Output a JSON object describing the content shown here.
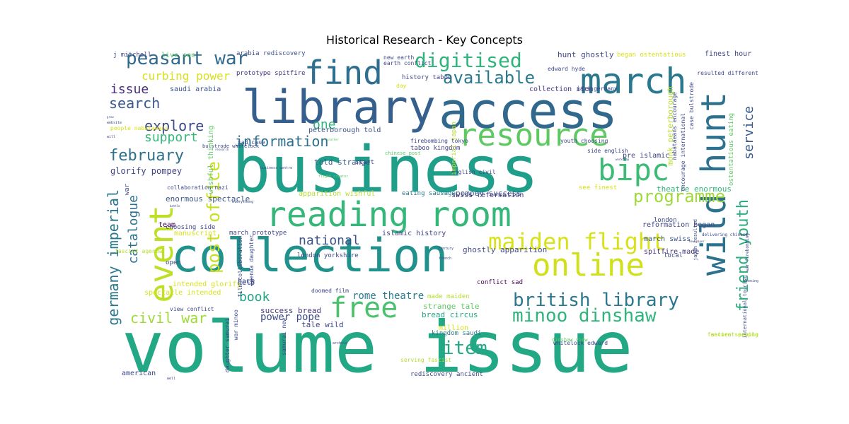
{
  "chart_data": {
    "type": "wordcloud",
    "title": "Historical Research - Key Concepts",
    "colormap": "viridis",
    "background": "#ffffff",
    "words": [
      {
        "text": "volume issue",
        "color": "#22a884"
      },
      {
        "text": "business",
        "color": "#1f9e89"
      },
      {
        "text": "access",
        "color": "#31688e"
      },
      {
        "text": "library",
        "color": "#355f8d"
      },
      {
        "text": "collection",
        "color": "#21918c"
      },
      {
        "text": "reading room",
        "color": "#35b779"
      },
      {
        "text": "march",
        "color": "#2a788e"
      },
      {
        "text": "wild hunt",
        "color": "#2c728e"
      },
      {
        "text": "online",
        "color": "#d0e11c"
      },
      {
        "text": "find",
        "color": "#2e6e8e"
      },
      {
        "text": "resource",
        "color": "#5ec962"
      },
      {
        "text": "event",
        "color": "#bddf26"
      },
      {
        "text": "bipc",
        "color": "#3cbb75"
      },
      {
        "text": "free",
        "color": "#4ac16d"
      },
      {
        "text": "maiden flight",
        "color": "#d8e219"
      },
      {
        "text": "digitised",
        "color": "#2fb47c"
      },
      {
        "text": "peasant war",
        "color": "#30698e"
      },
      {
        "text": "british library",
        "color": "#2a788e"
      },
      {
        "text": "minoo dinshaw",
        "color": "#2fb47c"
      },
      {
        "text": "post office",
        "color": "#c8e020"
      },
      {
        "text": "programme",
        "color": "#9fda3a"
      },
      {
        "text": "item",
        "color": "#22a884"
      },
      {
        "text": "friend youth",
        "color": "#29af7f"
      },
      {
        "text": "germany imperial",
        "color": "#2a788e"
      },
      {
        "text": "available",
        "color": "#2a788e"
      },
      {
        "text": "information",
        "color": "#2d708e"
      },
      {
        "text": "february",
        "color": "#2d708e"
      },
      {
        "text": "explore",
        "color": "#3e4989"
      },
      {
        "text": "search",
        "color": "#38598c"
      },
      {
        "text": "issue",
        "color": "#472d7b"
      },
      {
        "text": "national",
        "color": "#3b528b"
      },
      {
        "text": "civil war",
        "color": "#a0da39"
      },
      {
        "text": "book",
        "color": "#21a685"
      },
      {
        "text": "catalogue",
        "color": "#2c728e"
      },
      {
        "text": "service",
        "color": "#38598c"
      },
      {
        "text": "support",
        "color": "#35b779"
      },
      {
        "text": "one",
        "color": "#2fb47c"
      },
      {
        "text": "curbing power",
        "color": "#d8e219"
      },
      {
        "text": "rome theatre",
        "color": "#287c8e"
      },
      {
        "text": "power pope",
        "color": "#3e4989"
      },
      {
        "text": "glorify pompey",
        "color": "#404588"
      },
      {
        "text": "told strange",
        "color": "#355f8d"
      },
      {
        "text": "enormous spectacle",
        "color": "#39568c"
      },
      {
        "text": "theatre enormous",
        "color": "#2fb47c"
      },
      {
        "text": "pompey success",
        "color": "#38598c"
      },
      {
        "text": "success bread",
        "color": "#453882"
      },
      {
        "text": "bread circus",
        "color": "#22a884"
      },
      {
        "text": "strange tale",
        "color": "#5ec962"
      },
      {
        "text": "tale wild",
        "color": "#404588"
      },
      {
        "text": "hunt ghostly",
        "color": "#3e4989"
      },
      {
        "text": "ghostly apparition",
        "color": "#3e4989"
      },
      {
        "text": "collection item",
        "color": "#453882"
      },
      {
        "text": "peterborough told",
        "color": "#3b528b"
      },
      {
        "text": "monk peterborough",
        "color": "#b5de2b"
      },
      {
        "text": "march swiss",
        "color": "#38598c"
      },
      {
        "text": "swiss reformation",
        "color": "#46327e"
      },
      {
        "text": "reformation began",
        "color": "#404588"
      },
      {
        "text": "spitfire made",
        "color": "#46327e"
      },
      {
        "text": "made maiden",
        "color": "#b5de2b"
      },
      {
        "text": "prototype spitfire",
        "color": "#46327e"
      },
      {
        "text": "march prototype",
        "color": "#3e4989"
      },
      {
        "text": "saudi arabia",
        "color": "#3b528b"
      },
      {
        "text": "kingdom saudi",
        "color": "#2a788e"
      },
      {
        "text": "taboo kingdom",
        "color": "#404588"
      },
      {
        "text": "history taboo",
        "color": "#404588"
      },
      {
        "text": "islamic history",
        "color": "#404588"
      },
      {
        "text": "pre islamic",
        "color": "#404588"
      },
      {
        "text": "arabia rediscovery",
        "color": "#3b528b"
      },
      {
        "text": "rediscovery ancient",
        "color": "#3e4989"
      },
      {
        "text": "ancient people",
        "color": "#b5de2b"
      },
      {
        "text": "people nabataeans",
        "color": "#d8e219"
      },
      {
        "text": "nabataeans encourage",
        "color": "#3e4989"
      },
      {
        "text": "encourage international",
        "color": "#3e4989"
      },
      {
        "text": "international tourism",
        "color": "#3e4989"
      },
      {
        "text": "finest hour",
        "color": "#3e4989"
      },
      {
        "text": "see finest",
        "color": "#d8e219"
      },
      {
        "text": "began ostentatious",
        "color": "#d8e219"
      },
      {
        "text": "ostentatious eating",
        "color": "#5ec962"
      },
      {
        "text": "eating sausage",
        "color": "#2a788e"
      },
      {
        "text": "fascist agenda",
        "color": "#b5de2b"
      },
      {
        "text": "serving fascist",
        "color": "#b5de2b"
      },
      {
        "text": "feature serving",
        "color": "#b5de2b"
      },
      {
        "text": "agenda daughter",
        "color": "#3e4989"
      },
      {
        "text": "daughter samurai",
        "color": "#3e4989"
      },
      {
        "text": "samurai new",
        "color": "#3e4989"
      },
      {
        "text": "new earth",
        "color": "#3e4989"
      },
      {
        "text": "earth conflict",
        "color": "#3e4989"
      },
      {
        "text": "view conflict",
        "color": "#3e4989"
      },
      {
        "text": "conflict sad",
        "color": "#440154"
      },
      {
        "text": "sad case",
        "color": "#3e4989"
      },
      {
        "text": "case bulstrode",
        "color": "#3e4989"
      },
      {
        "text": "bulstrode whitelock",
        "color": "#3e4989"
      },
      {
        "text": "whitelock edward",
        "color": "#3e4989"
      },
      {
        "text": "edward hyde",
        "color": "#3e4989"
      },
      {
        "text": "youth choosing",
        "color": "#3e4989"
      },
      {
        "text": "choosing side",
        "color": "#3e4989"
      },
      {
        "text": "side english",
        "color": "#3e4989"
      },
      {
        "text": "english civil",
        "color": "#3e4989"
      },
      {
        "text": "imperial japan",
        "color": "#b5de2b"
      },
      {
        "text": "japan resulted",
        "color": "#3e4989"
      },
      {
        "text": "resulted different",
        "color": "#3e4989"
      },
      {
        "text": "war firebombing",
        "color": "#3e4989"
      },
      {
        "text": "firebombing tokyo",
        "color": "#3e4989"
      },
      {
        "text": "collaboration nazi",
        "color": "#3e4989"
      },
      {
        "text": "nazi germany",
        "color": "#3e4989"
      },
      {
        "text": "film collaboration",
        "color": "#3e4989"
      },
      {
        "text": "doomed film",
        "color": "#3e4989"
      },
      {
        "text": "war minoo",
        "color": "#3e4989"
      },
      {
        "text": "dinshaw view",
        "color": "#5ec962"
      },
      {
        "text": "chinese post",
        "color": "#5ec962"
      },
      {
        "text": "delivering chinese",
        "color": "#3e4989"
      },
      {
        "text": "london yorkshire",
        "color": "#3e4989"
      },
      {
        "text": "apparition wishful",
        "color": "#b5de2b"
      },
      {
        "text": "wishful thinking",
        "color": "#5ec962"
      },
      {
        "text": "spectacle intended",
        "color": "#d8e219"
      },
      {
        "text": "intended glorify",
        "color": "#d8e219"
      },
      {
        "text": "j mitchell",
        "color": "#3e4989"
      },
      {
        "text": "live see",
        "color": "#5ec962"
      },
      {
        "text": "team",
        "color": "#440154"
      },
      {
        "text": "manuscript",
        "color": "#d8e219"
      },
      {
        "text": "million",
        "color": "#d8e219"
      },
      {
        "text": "american",
        "color": "#3e4989"
      },
      {
        "text": "london",
        "color": "#3e4989"
      },
      {
        "text": "local",
        "color": "#3e4989"
      },
      {
        "text": "start",
        "color": "#3e4989"
      },
      {
        "text": "day",
        "color": "#d8e219"
      },
      {
        "text": "help",
        "color": "#3e4989"
      },
      {
        "text": "back",
        "color": "#3e4989"
      },
      {
        "text": "open",
        "color": "#3e4989"
      },
      {
        "text": "war",
        "color": "#3e4989"
      },
      {
        "text": "flight creator",
        "color": "#5ec962"
      },
      {
        "text": "everything",
        "color": "#3e4989"
      },
      {
        "text": "battle",
        "color": "#3e4989"
      },
      {
        "text": "business centre",
        "color": "#3e4989"
      },
      {
        "text": "archive",
        "color": "#3e4989"
      },
      {
        "text": "french",
        "color": "#3e4989"
      },
      {
        "text": "century",
        "color": "#3e4989"
      },
      {
        "text": "opening",
        "color": "#3e4989"
      },
      {
        "text": "website",
        "color": "#3e4989"
      },
      {
        "text": "another",
        "color": "#5ec962"
      },
      {
        "text": "research",
        "color": "#3e4989"
      },
      {
        "text": "workshop",
        "color": "#3e4989"
      },
      {
        "text": "will",
        "color": "#3e4989"
      },
      {
        "text": "grow",
        "color": "#3e4989"
      },
      {
        "text": "newspaper",
        "color": "#3e4989"
      },
      {
        "text": "well",
        "color": "#3e4989"
      },
      {
        "text": "held",
        "color": "#3e4989"
      },
      {
        "text": "now",
        "color": "#3e4989"
      },
      {
        "text": "issue area",
        "color": "#3e4989"
      }
    ]
  }
}
